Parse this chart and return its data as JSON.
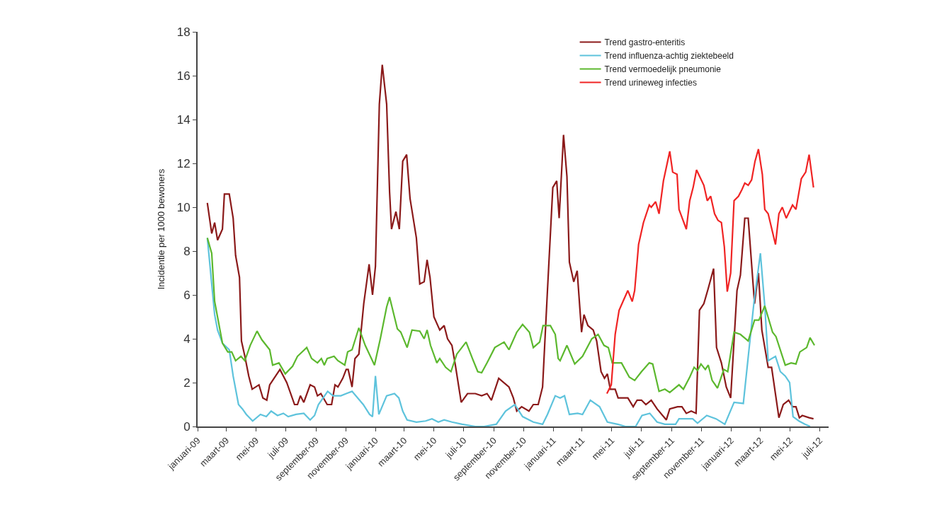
{
  "chart_data": {
    "type": "line",
    "ylabel": "Incidentie per 1000 bewoners",
    "ylim": [
      0,
      18
    ],
    "yticks": [
      0,
      2,
      4,
      6,
      8,
      10,
      12,
      14,
      16,
      18
    ],
    "xlim": [
      "2009-01-01",
      "2012-07-19"
    ],
    "xticks": [
      {
        "value": "2009-01-01",
        "label": "januari-09"
      },
      {
        "value": "2009-03-01",
        "label": "maart-09"
      },
      {
        "value": "2009-05-01",
        "label": "mei-09"
      },
      {
        "value": "2009-07-01",
        "label": "juli-09"
      },
      {
        "value": "2009-09-01",
        "label": "september-09"
      },
      {
        "value": "2009-11-01",
        "label": "november-09"
      },
      {
        "value": "2010-01-01",
        "label": "januari-10"
      },
      {
        "value": "2010-03-01",
        "label": "maart-10"
      },
      {
        "value": "2010-05-01",
        "label": "mei-10"
      },
      {
        "value": "2010-07-01",
        "label": "juli-10"
      },
      {
        "value": "2010-09-01",
        "label": "september-10"
      },
      {
        "value": "2010-11-01",
        "label": "november-10"
      },
      {
        "value": "2011-01-01",
        "label": "januari-11"
      },
      {
        "value": "2011-03-01",
        "label": "maart-11"
      },
      {
        "value": "2011-05-01",
        "label": "mei-11"
      },
      {
        "value": "2011-07-01",
        "label": "juli-11"
      },
      {
        "value": "2011-09-01",
        "label": "september-11"
      },
      {
        "value": "2011-11-01",
        "label": "november-11"
      },
      {
        "value": "2012-01-01",
        "label": "januari-12"
      },
      {
        "value": "2012-03-01",
        "label": "maart-12"
      },
      {
        "value": "2012-05-01",
        "label": "mei-12"
      },
      {
        "value": "2012-07-01",
        "label": "juli-12"
      }
    ],
    "grid": false,
    "legend": "top right",
    "marker": "none",
    "line_style": "solid",
    "series": [
      {
        "name": "Trend gastro-enteritis",
        "color": "#8b1a1a",
        "x": [
          "2009-01-21",
          "2009-01-30",
          "2009-02-05",
          "2009-02-11",
          "2009-02-21",
          "2009-02-25",
          "2009-03-07",
          "2009-03-15",
          "2009-03-20",
          "2009-03-28",
          "2009-04-01",
          "2009-04-08",
          "2009-04-16",
          "2009-04-23",
          "2009-05-07",
          "2009-05-15",
          "2009-05-23",
          "2009-05-29",
          "2009-06-19",
          "2009-07-03",
          "2009-07-19",
          "2009-07-25",
          "2009-07-31",
          "2009-08-07",
          "2009-08-20",
          "2009-08-29",
          "2009-09-04",
          "2009-09-11",
          "2009-09-24",
          "2009-10-03",
          "2009-10-10",
          "2009-10-16",
          "2009-10-26",
          "2009-11-02",
          "2009-11-06",
          "2009-11-14",
          "2009-11-20",
          "2009-11-28",
          "2009-12-08",
          "2009-12-19",
          "2009-12-26",
          "2010-01-01",
          "2010-01-09",
          "2010-01-15",
          "2010-01-24",
          "2010-01-30",
          "2010-02-03",
          "2010-02-12",
          "2010-02-19",
          "2010-02-26",
          "2010-03-06",
          "2010-03-13",
          "2010-03-26",
          "2010-04-02",
          "2010-04-11",
          "2010-04-17",
          "2010-04-23",
          "2010-05-01",
          "2010-05-13",
          "2010-05-22",
          "2010-05-29",
          "2010-06-07",
          "2010-06-14",
          "2010-06-26",
          "2010-07-09",
          "2010-07-25",
          "2010-08-07",
          "2010-08-18",
          "2010-08-27",
          "2010-09-11",
          "2010-10-02",
          "2010-10-11",
          "2010-10-18",
          "2010-10-28",
          "2010-11-12",
          "2010-11-21",
          "2010-12-01",
          "2010-12-10",
          "2010-12-20",
          "2010-12-31",
          "2011-01-08",
          "2011-01-13",
          "2011-01-22",
          "2011-01-29",
          "2011-02-03",
          "2011-02-12",
          "2011-02-19",
          "2011-02-28",
          "2011-03-05",
          "2011-03-13",
          "2011-03-24",
          "2011-03-31",
          "2011-04-09",
          "2011-04-16",
          "2011-04-22",
          "2011-04-28",
          "2011-05-08",
          "2011-05-14",
          "2011-05-24",
          "2011-06-03",
          "2011-06-14",
          "2011-06-22",
          "2011-07-01",
          "2011-07-10",
          "2011-07-21",
          "2011-08-02",
          "2011-08-21",
          "2011-08-28",
          "2011-09-13",
          "2011-09-22",
          "2011-10-01",
          "2011-10-11",
          "2011-10-21",
          "2011-10-28",
          "2011-11-06",
          "2011-11-15",
          "2011-11-26",
          "2011-12-02",
          "2011-12-12",
          "2011-12-22",
          "2011-12-31",
          "2012-01-13",
          "2012-01-20",
          "2012-01-29",
          "2012-02-05",
          "2012-02-18",
          "2012-02-26",
          "2012-03-04",
          "2012-03-17",
          "2012-03-24",
          "2012-04-08",
          "2012-04-17",
          "2012-04-28",
          "2012-05-06",
          "2012-05-13",
          "2012-05-20",
          "2012-05-26",
          "2012-06-09",
          "2012-06-18"
        ],
        "values": [
          10.2,
          8.8,
          9.3,
          8.5,
          9.0,
          10.6,
          10.6,
          9.5,
          7.8,
          6.8,
          3.9,
          3.2,
          2.3,
          1.7,
          1.9,
          1.3,
          1.2,
          1.9,
          2.6,
          2.0,
          1.0,
          1.0,
          1.4,
          1.1,
          1.9,
          1.8,
          1.4,
          1.5,
          1.0,
          1.0,
          1.9,
          1.8,
          2.2,
          2.6,
          2.6,
          1.8,
          3.1,
          3.3,
          5.6,
          7.4,
          6.0,
          7.3,
          14.7,
          16.5,
          14.7,
          10.7,
          9.0,
          9.8,
          9.0,
          12.1,
          12.4,
          10.4,
          8.6,
          6.5,
          6.6,
          7.6,
          6.8,
          5.0,
          4.4,
          4.6,
          4.0,
          3.7,
          2.8,
          1.1,
          1.5,
          1.5,
          1.4,
          1.5,
          1.2,
          2.2,
          1.8,
          1.3,
          0.7,
          0.9,
          0.7,
          1.0,
          1.0,
          1.8,
          6.2,
          10.9,
          11.2,
          9.5,
          13.3,
          11.4,
          7.5,
          6.6,
          7.1,
          4.3,
          5.1,
          4.6,
          4.4,
          3.9,
          2.5,
          2.2,
          2.4,
          1.7,
          1.7,
          1.3,
          1.3,
          1.3,
          0.9,
          1.2,
          1.2,
          1.0,
          1.2,
          0.8,
          0.3,
          0.8,
          0.9,
          0.9,
          0.6,
          0.7,
          0.6,
          5.3,
          5.6,
          6.3,
          7.2,
          3.6,
          2.9,
          1.8,
          1.3,
          6.2,
          6.9,
          9.5,
          9.5,
          5.6,
          7.0,
          4.4,
          2.7,
          2.7,
          0.4,
          1.0,
          1.2,
          0.9,
          0.9,
          0.4,
          0.5,
          0.4,
          0.35
        ]
      },
      {
        "name": "Trend influenza-achtig ziektebeeld",
        "color": "#5ec3dc",
        "x": [
          "2009-01-21",
          "2009-02-05",
          "2009-02-11",
          "2009-02-21",
          "2009-03-07",
          "2009-03-15",
          "2009-03-26",
          "2009-04-03",
          "2009-04-11",
          "2009-04-24",
          "2009-05-10",
          "2009-05-22",
          "2009-06-01",
          "2009-06-14",
          "2009-06-26",
          "2009-07-06",
          "2009-07-22",
          "2009-08-07",
          "2009-08-20",
          "2009-08-29",
          "2009-09-06",
          "2009-09-25",
          "2009-10-06",
          "2009-10-22",
          "2009-11-02",
          "2009-11-14",
          "2009-12-07",
          "2009-12-20",
          "2009-12-26",
          "2010-01-01",
          "2010-01-08",
          "2010-01-24",
          "2010-02-09",
          "2010-02-18",
          "2010-02-26",
          "2010-03-07",
          "2010-03-26",
          "2010-04-14",
          "2010-04-27",
          "2010-05-10",
          "2010-05-22",
          "2010-06-07",
          "2010-06-28",
          "2010-07-25",
          "2010-08-12",
          "2010-09-06",
          "2010-09-25",
          "2010-10-14",
          "2010-10-30",
          "2010-11-21",
          "2010-12-10",
          "2010-12-20",
          "2011-01-05",
          "2011-01-15",
          "2011-01-24",
          "2011-02-03",
          "2011-02-20",
          "2011-03-02",
          "2011-03-18",
          "2011-04-06",
          "2011-04-22",
          "2011-05-13",
          "2011-05-29",
          "2011-06-19",
          "2011-07-02",
          "2011-07-18",
          "2011-08-02",
          "2011-08-18",
          "2011-09-09",
          "2011-09-16",
          "2011-10-14",
          "2011-10-24",
          "2011-11-12",
          "2011-12-01",
          "2011-12-19",
          "2012-01-07",
          "2012-01-26",
          "2012-02-17",
          "2012-03-01",
          "2012-03-10",
          "2012-03-17",
          "2012-04-01",
          "2012-04-11",
          "2012-04-21",
          "2012-04-30",
          "2012-05-07",
          "2012-05-19",
          "2012-06-01",
          "2012-06-11"
        ],
        "values": [
          8.6,
          5.1,
          4.4,
          3.8,
          3.5,
          2.3,
          1.0,
          0.8,
          0.55,
          0.25,
          0.55,
          0.45,
          0.7,
          0.5,
          0.6,
          0.45,
          0.55,
          0.6,
          0.3,
          0.5,
          1.0,
          1.6,
          1.4,
          1.4,
          1.5,
          1.6,
          1.0,
          0.55,
          0.45,
          2.3,
          0.55,
          1.4,
          1.5,
          1.3,
          0.7,
          0.3,
          0.2,
          0.25,
          0.35,
          0.2,
          0.3,
          0.2,
          0.1,
          0.0,
          0.0,
          0.1,
          0.7,
          1.0,
          0.45,
          0.2,
          0.1,
          0.55,
          1.4,
          1.3,
          1.4,
          0.55,
          0.6,
          0.55,
          1.2,
          0.9,
          0.2,
          0.1,
          0.0,
          0.0,
          0.5,
          0.6,
          0.2,
          0.1,
          0.1,
          0.35,
          0.35,
          0.15,
          0.5,
          0.35,
          0.1,
          1.1,
          1.05,
          5.7,
          7.9,
          5.5,
          3.0,
          3.2,
          2.5,
          2.3,
          2.0,
          0.45,
          0.25,
          0.1,
          0.0
        ]
      },
      {
        "name": "Trend vermoedelijk pneumonie",
        "color": "#5cb82e",
        "x": [
          "2009-01-21",
          "2009-01-30",
          "2009-02-05",
          "2009-02-16",
          "2009-02-21",
          "2009-03-04",
          "2009-03-12",
          "2009-03-20",
          "2009-03-31",
          "2009-04-08",
          "2009-04-19",
          "2009-05-03",
          "2009-05-13",
          "2009-05-29",
          "2009-06-04",
          "2009-06-17",
          "2009-06-30",
          "2009-07-15",
          "2009-07-25",
          "2009-08-13",
          "2009-08-23",
          "2009-09-04",
          "2009-09-12",
          "2009-09-18",
          "2009-09-24",
          "2009-10-08",
          "2009-10-16",
          "2009-10-30",
          "2009-11-05",
          "2009-11-14",
          "2009-11-28",
          "2009-12-11",
          "2009-12-30",
          "2010-01-11",
          "2010-01-24",
          "2010-01-30",
          "2010-02-15",
          "2010-02-22",
          "2010-03-07",
          "2010-03-17",
          "2010-04-02",
          "2010-04-11",
          "2010-04-17",
          "2010-04-24",
          "2010-05-07",
          "2010-05-13",
          "2010-05-25",
          "2010-06-05",
          "2010-06-17",
          "2010-07-06",
          "2010-07-19",
          "2010-07-30",
          "2010-08-07",
          "2010-08-18",
          "2010-09-03",
          "2010-09-22",
          "2010-10-02",
          "2010-10-18",
          "2010-10-30",
          "2010-11-13",
          "2010-11-21",
          "2010-12-04",
          "2010-12-11",
          "2010-12-26",
          "2011-01-05",
          "2011-01-11",
          "2011-01-15",
          "2011-01-29",
          "2011-02-14",
          "2011-03-02",
          "2011-03-21",
          "2011-04-03",
          "2011-04-15",
          "2011-04-24",
          "2011-05-02",
          "2011-05-21",
          "2011-06-06",
          "2011-06-17",
          "2011-07-01",
          "2011-07-17",
          "2011-07-24",
          "2011-08-06",
          "2011-08-18",
          "2011-08-28",
          "2011-09-16",
          "2011-09-25",
          "2011-10-08",
          "2011-10-17",
          "2011-10-24",
          "2011-10-31",
          "2011-11-09",
          "2011-11-15",
          "2011-11-23",
          "2011-12-04",
          "2011-12-17",
          "2011-12-25",
          "2012-01-07",
          "2012-01-20",
          "2012-02-05",
          "2012-02-18",
          "2012-02-27",
          "2012-03-10",
          "2012-03-26",
          "2012-04-02",
          "2012-04-21",
          "2012-05-03",
          "2012-05-13",
          "2012-05-21",
          "2012-06-04",
          "2012-06-11",
          "2012-06-20"
        ],
        "values": [
          8.6,
          7.9,
          5.7,
          4.4,
          3.8,
          3.4,
          3.4,
          3.0,
          3.2,
          3.0,
          3.7,
          4.35,
          3.95,
          3.5,
          2.8,
          2.9,
          2.4,
          2.75,
          3.2,
          3.6,
          3.1,
          2.9,
          3.1,
          2.8,
          3.1,
          3.2,
          3.0,
          2.8,
          3.4,
          3.5,
          4.5,
          3.7,
          2.8,
          4.0,
          5.45,
          5.9,
          4.45,
          4.3,
          3.6,
          4.4,
          4.35,
          4.0,
          4.4,
          3.7,
          2.9,
          3.1,
          2.7,
          2.5,
          3.3,
          3.85,
          3.1,
          2.5,
          2.45,
          2.9,
          3.6,
          3.85,
          3.5,
          4.3,
          4.65,
          4.3,
          3.6,
          3.85,
          4.6,
          4.6,
          4.2,
          3.1,
          3.0,
          3.7,
          2.85,
          3.2,
          4.0,
          4.2,
          3.7,
          3.6,
          2.9,
          2.9,
          2.25,
          2.1,
          2.5,
          2.9,
          2.85,
          1.6,
          1.7,
          1.55,
          1.9,
          1.7,
          2.25,
          2.7,
          2.55,
          2.85,
          2.6,
          2.8,
          2.1,
          1.75,
          2.6,
          2.5,
          4.3,
          4.2,
          3.9,
          4.85,
          4.85,
          5.5,
          4.3,
          4.1,
          2.8,
          2.9,
          2.85,
          3.4,
          3.6,
          4.05,
          3.7
        ]
      },
      {
        "name": "Trend urineweg infecties",
        "color": "#f02424",
        "x": [
          "2011-04-21",
          "2011-04-30",
          "2011-05-08",
          "2011-05-16",
          "2011-05-24",
          "2011-06-03",
          "2011-06-12",
          "2011-06-17",
          "2011-06-25",
          "2011-07-05",
          "2011-07-17",
          "2011-07-21",
          "2011-07-30",
          "2011-08-06",
          "2011-08-15",
          "2011-08-28",
          "2011-09-03",
          "2011-09-12",
          "2011-09-16",
          "2011-10-01",
          "2011-10-08",
          "2011-10-15",
          "2011-10-22",
          "2011-11-06",
          "2011-11-13",
          "2011-11-20",
          "2011-11-28",
          "2011-12-05",
          "2011-12-12",
          "2011-12-18",
          "2011-12-24",
          "2011-12-31",
          "2012-01-07",
          "2012-01-16",
          "2012-01-23",
          "2012-01-29",
          "2012-02-05",
          "2012-02-12",
          "2012-02-19",
          "2012-02-26",
          "2012-03-05",
          "2012-03-10",
          "2012-03-17",
          "2012-04-01",
          "2012-04-08",
          "2012-04-15",
          "2012-04-23",
          "2012-05-06",
          "2012-05-13",
          "2012-05-24",
          "2012-06-02",
          "2012-06-09",
          "2012-06-18"
        ],
        "values": [
          1.5,
          1.9,
          4.2,
          5.3,
          5.7,
          6.2,
          5.7,
          6.2,
          8.3,
          9.3,
          10.1,
          10.0,
          10.25,
          9.7,
          11.2,
          12.55,
          11.6,
          11.5,
          9.9,
          9.0,
          10.3,
          10.9,
          11.7,
          11.0,
          10.3,
          10.5,
          9.7,
          9.4,
          9.3,
          8.2,
          6.15,
          7.0,
          10.3,
          10.5,
          10.8,
          11.1,
          11.0,
          11.25,
          12.1,
          12.65,
          11.5,
          9.9,
          9.7,
          8.3,
          9.7,
          10.0,
          9.5,
          10.1,
          9.9,
          11.3,
          11.6,
          12.4,
          10.9
        ]
      }
    ]
  }
}
